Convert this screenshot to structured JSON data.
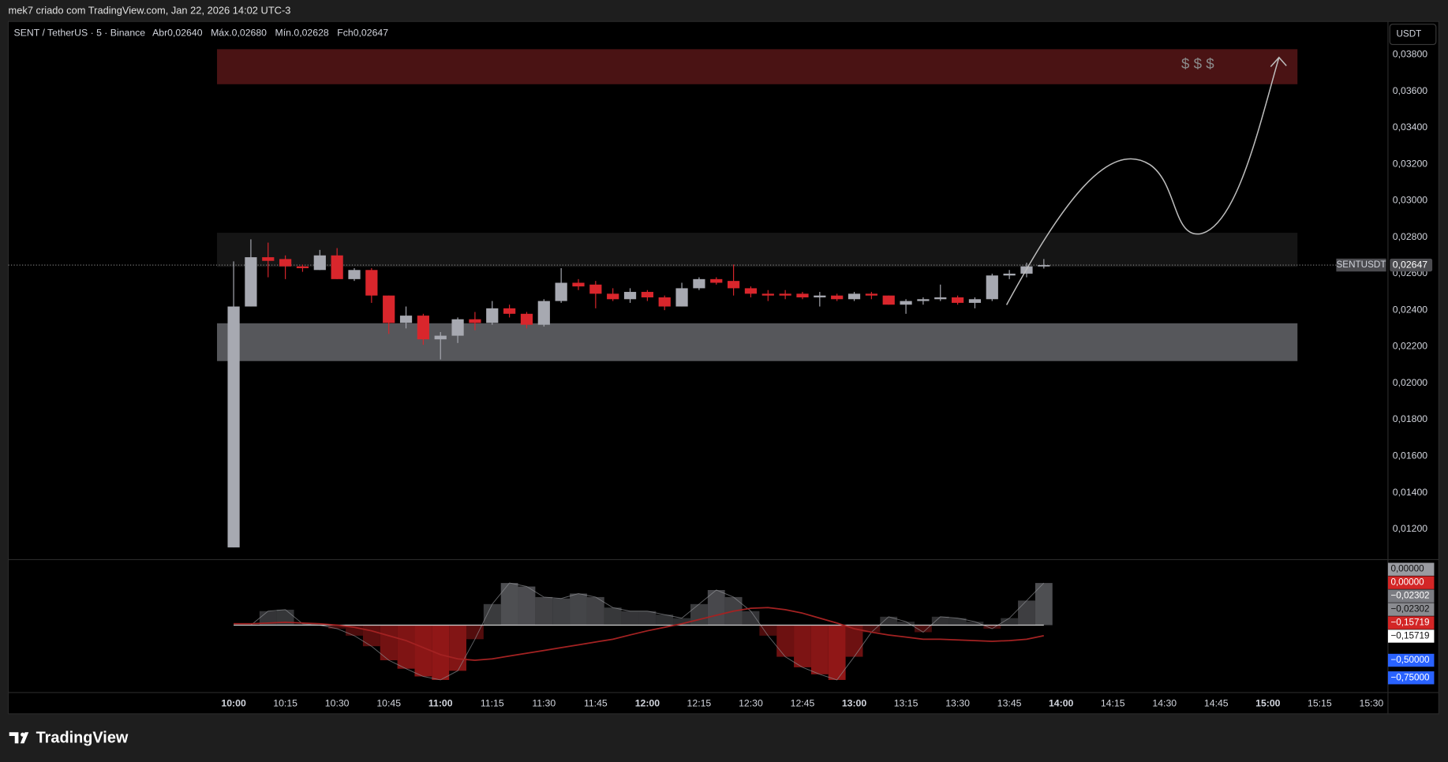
{
  "header": {
    "watermark": "mek7 criado com TradingView.com, Jan 22, 2026 14:02 UTC-3",
    "brand": "TradingView"
  },
  "chart_data": {
    "type": "candlestick",
    "legend": {
      "symbol": "SENT / TetherUS · 5 · Binance",
      "ohlc": [
        "Abr0,02640",
        "Máx.0,02680",
        "Mín.0,02628",
        "Fch0,02647"
      ]
    },
    "currency": "USDT",
    "x": [
      "10:00",
      "10:05",
      "10:10",
      "10:15",
      "10:20",
      "10:25",
      "10:30",
      "10:35",
      "10:40",
      "10:45",
      "10:50",
      "10:55",
      "11:00",
      "11:05",
      "11:10",
      "11:15",
      "11:20",
      "11:25",
      "11:30",
      "11:35",
      "11:40",
      "11:45",
      "11:50",
      "11:55",
      "12:00",
      "12:05",
      "12:10",
      "12:15",
      "12:20",
      "12:25",
      "12:30",
      "12:35",
      "12:40",
      "12:45",
      "12:50",
      "12:55",
      "13:00",
      "13:05",
      "13:10",
      "13:15",
      "13:20",
      "13:25",
      "13:30",
      "13:35",
      "13:40",
      "13:45",
      "13:50",
      "13:55"
    ],
    "open": [
      0.011,
      0.0242,
      0.0269,
      0.0268,
      0.0264,
      0.0262,
      0.027,
      0.0257,
      0.0262,
      0.0248,
      0.0233,
      0.0237,
      0.0224,
      0.0226,
      0.0235,
      0.0233,
      0.0241,
      0.0238,
      0.0232,
      0.0245,
      0.0255,
      0.0254,
      0.0249,
      0.0246,
      0.025,
      0.0247,
      0.0242,
      0.0252,
      0.0257,
      0.0256,
      0.0252,
      0.0249,
      0.0249,
      0.0249,
      0.0247,
      0.0248,
      0.0246,
      0.0249,
      0.0248,
      0.0243,
      0.0245,
      0.0246,
      0.0247,
      0.0244,
      0.0246,
      0.0259,
      0.026,
      0.0264
    ],
    "high": [
      0.02667,
      0.02788,
      0.0277,
      0.027,
      0.0265,
      0.0273,
      0.0274,
      0.0263,
      0.0263,
      0.0248,
      0.0242,
      0.0238,
      0.0228,
      0.0236,
      0.0239,
      0.0245,
      0.0243,
      0.0239,
      0.0246,
      0.0263,
      0.0257,
      0.0256,
      0.0252,
      0.0252,
      0.0251,
      0.0248,
      0.0255,
      0.0258,
      0.0258,
      0.0265,
      0.0253,
      0.0251,
      0.0251,
      0.025,
      0.025,
      0.0249,
      0.025,
      0.025,
      0.0248,
      0.0246,
      0.0247,
      0.0254,
      0.0248,
      0.0247,
      0.026,
      0.0262,
      0.0266,
      0.0268
    ],
    "low": [
      0.011,
      0.0242,
      0.0258,
      0.0257,
      0.0261,
      0.0262,
      0.0257,
      0.0256,
      0.0244,
      0.0227,
      0.023,
      0.0221,
      0.0213,
      0.0222,
      0.0229,
      0.0232,
      0.0236,
      0.023,
      0.0231,
      0.0244,
      0.0251,
      0.0241,
      0.0245,
      0.0244,
      0.0245,
      0.024,
      0.0242,
      0.0251,
      0.0254,
      0.0248,
      0.0247,
      0.0245,
      0.0246,
      0.0246,
      0.0242,
      0.0245,
      0.0245,
      0.0246,
      0.0243,
      0.0238,
      0.0243,
      0.0245,
      0.0243,
      0.0241,
      0.0245,
      0.0257,
      0.0258,
      0.02628
    ],
    "close": [
      0.0242,
      0.0269,
      0.0267,
      0.0264,
      0.0263,
      0.027,
      0.0257,
      0.0262,
      0.0248,
      0.0233,
      0.0237,
      0.0224,
      0.0226,
      0.0235,
      0.0233,
      0.0241,
      0.0238,
      0.0232,
      0.0245,
      0.0255,
      0.0253,
      0.0249,
      0.0246,
      0.025,
      0.0247,
      0.0242,
      0.0252,
      0.0257,
      0.0255,
      0.0252,
      0.0249,
      0.0248,
      0.0248,
      0.0247,
      0.0248,
      0.0246,
      0.0249,
      0.0248,
      0.0243,
      0.0245,
      0.0246,
      0.0247,
      0.0244,
      0.0246,
      0.0259,
      0.026,
      0.0264,
      0.02647
    ],
    "up_color": "#a7a9b1",
    "down_color": "#d9262c",
    "ylim": [
      0.01038,
      0.03982
    ],
    "yticks": [
      {
        "value": 0.012,
        "label": "0,01200"
      },
      {
        "value": 0.014,
        "label": "0,01400"
      },
      {
        "value": 0.016,
        "label": "0,01600"
      },
      {
        "value": 0.018,
        "label": "0,01800"
      },
      {
        "value": 0.02,
        "label": "0,02000"
      },
      {
        "value": 0.022,
        "label": "0,02200"
      },
      {
        "value": 0.024,
        "label": "0,02400"
      },
      {
        "value": 0.026,
        "label": "0,02600"
      },
      {
        "value": 0.028,
        "label": "0,02800"
      },
      {
        "value": 0.03,
        "label": "0,03000"
      },
      {
        "value": 0.032,
        "label": "0,03200"
      },
      {
        "value": 0.034,
        "label": "0,03400"
      },
      {
        "value": 0.036,
        "label": "0,03600"
      },
      {
        "value": 0.038,
        "label": "0,03800"
      }
    ],
    "xticks": [
      "10:00",
      "10:15",
      "10:30",
      "10:45",
      "11:00",
      "11:15",
      "11:30",
      "11:45",
      "12:00",
      "12:15",
      "12:30",
      "12:45",
      "13:00",
      "13:15",
      "13:30",
      "13:45",
      "14:00",
      "14:15",
      "14:30",
      "14:45",
      "15:00",
      "15:15",
      "15:30"
    ],
    "last_price": {
      "value": 0.02647,
      "label": "0,02647",
      "symbol": "SENTUSDT"
    },
    "zones": [
      {
        "low": 0.03638,
        "high": 0.0383,
        "color": "#4a1314"
      },
      {
        "low": 0.02637,
        "high": 0.02824,
        "color": "#151515"
      },
      {
        "low": 0.02121,
        "high": 0.02328,
        "color": "#56575b"
      }
    ],
    "annotation": "$ $ $",
    "indicator": {
      "ylim": [
        -0.96,
        0.92
      ],
      "histogram": {
        "values": [
          0,
          0,
          0.2,
          0.22,
          0.02,
          0,
          -0.05,
          -0.15,
          -0.3,
          -0.5,
          -0.62,
          -0.73,
          -0.78,
          -0.65,
          -0.2,
          0.3,
          0.6,
          0.55,
          0.4,
          0.38,
          0.45,
          0.4,
          0.25,
          0.2,
          0.2,
          0.15,
          0.1,
          0.3,
          0.5,
          0.4,
          0.2,
          -0.15,
          -0.45,
          -0.6,
          -0.7,
          -0.78,
          -0.45,
          -0.1,
          0.12,
          0.05,
          -0.1,
          0.12,
          0.1,
          0.05,
          -0.05,
          0.1,
          0.35,
          0.6
        ],
        "pos_color": "#6e6f74",
        "neg_color": "#b01c1c"
      },
      "signal": {
        "values": [
          0.02,
          0.02,
          0.03,
          0.04,
          0.03,
          0.02,
          0,
          -0.03,
          -0.08,
          -0.15,
          -0.22,
          -0.32,
          -0.42,
          -0.48,
          -0.5,
          -0.48,
          -0.44,
          -0.4,
          -0.36,
          -0.32,
          -0.28,
          -0.24,
          -0.2,
          -0.14,
          -0.08,
          -0.03,
          0.02,
          0.08,
          0.14,
          0.2,
          0.24,
          0.25,
          0.22,
          0.17,
          0.1,
          0.03,
          -0.05,
          -0.1,
          -0.14,
          -0.17,
          -0.2,
          -0.2,
          -0.21,
          -0.22,
          -0.23,
          -0.22,
          -0.2,
          -0.15
        ],
        "color": "#a32222"
      },
      "badges": [
        {
          "value": 0,
          "label": "0,00000",
          "bg": "#9a9ba1",
          "fg": "#111111"
        },
        {
          "value": 0,
          "label": "0,00000",
          "bg": "#d32626",
          "fg": "#ffffff"
        },
        {
          "value": -0.02302,
          "label": "−0,02302",
          "bg": "#7b7c82",
          "fg": "#ffffff"
        },
        {
          "value": -0.02302,
          "label": "−0,02302",
          "bg": "#8a8b90",
          "fg": "#111111"
        },
        {
          "value": -0.15719,
          "label": "−0,15719",
          "bg": "#d32626",
          "fg": "#ffffff"
        },
        {
          "value": -0.15719,
          "label": "−0,15719",
          "bg": "#ffffff",
          "fg": "#111111"
        },
        {
          "value": -0.5,
          "label": "−0,50000",
          "bg": "#2962ff",
          "fg": "#ffffff"
        },
        {
          "value": -0.75,
          "label": "−0,75000",
          "bg": "#2962ff",
          "fg": "#ffffff"
        }
      ]
    }
  }
}
